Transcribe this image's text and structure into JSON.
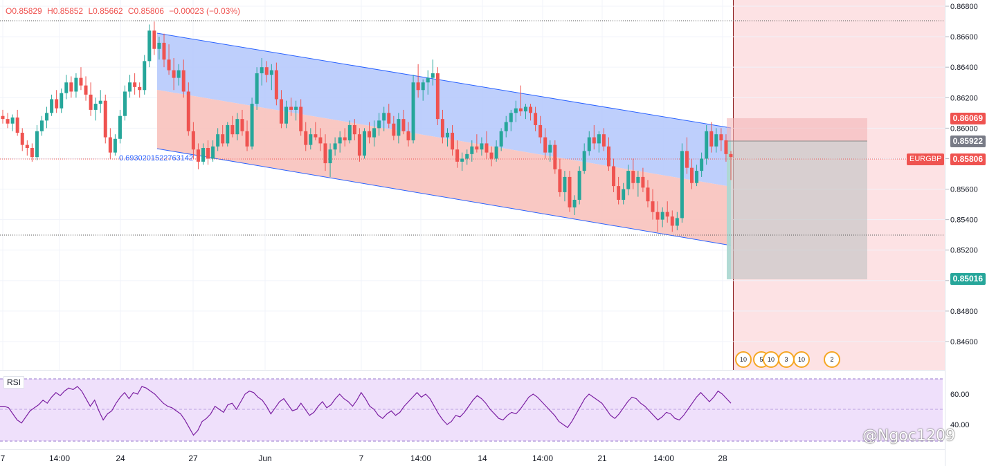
{
  "ohlc": {
    "open": "O0.85829",
    "high": "H0.85852",
    "low": "L0.85662",
    "close": "C0.85806",
    "change": "−0.00023 (−0.03%)"
  },
  "symbol": "EURGBP",
  "channel_label": "0.6930201522763142",
  "rsi_label": "RSI",
  "watermark": "@Ngoc1209",
  "price_tags": {
    "target_stop": "0.86069",
    "entry": "0.85922",
    "current": "0.85806",
    "target_profit": "0.85016"
  },
  "colors": {
    "up": "#26a69a",
    "down": "#ef5350",
    "channel_line": "#2962ff",
    "channel_upper_fill": "#b3c7fb",
    "channel_lower_fill": "#f8c2bd",
    "rsi": "#7b1fa2",
    "rsi_band": "#efe0fb",
    "future_zone": "#fde2e4"
  },
  "events": [
    "10",
    "5",
    "10",
    "3",
    "10",
    "2"
  ],
  "chart_data": {
    "type": "candlestick",
    "y_axis": {
      "ticks": [
        "0.86800",
        "0.86600",
        "0.86400",
        "0.86200",
        "0.86000",
        "0.85800",
        "0.85600",
        "0.85400",
        "0.85200",
        "0.85000",
        "0.84800",
        "0.84600"
      ],
      "ylim": [
        0.844,
        0.868
      ]
    },
    "x_axis": {
      "ticks": [
        "7",
        "14:00",
        "24",
        "27",
        "Jun",
        "7",
        "14:00",
        "14",
        "14:00",
        "21",
        "14:00",
        "28"
      ]
    },
    "rsi": {
      "ticks": [
        "60.00",
        "40.00"
      ],
      "values": [
        52,
        52,
        51,
        47,
        43,
        41,
        45,
        49,
        51,
        53,
        56,
        54,
        58,
        61,
        59,
        62,
        64,
        63,
        65,
        62,
        57,
        52,
        56,
        49,
        43,
        47,
        49,
        54,
        58,
        61,
        57,
        61,
        60,
        65,
        64,
        62,
        60,
        57,
        54,
        52,
        51,
        49,
        47,
        43,
        38,
        33,
        36,
        42,
        44,
        47,
        52,
        50,
        48,
        53,
        54,
        50,
        55,
        60,
        62,
        61,
        58,
        56,
        52,
        47,
        51,
        55,
        57,
        53,
        49,
        50,
        54,
        50,
        46,
        48,
        52,
        55,
        51,
        53,
        57,
        60,
        57,
        55,
        52,
        56,
        61,
        57,
        52,
        50,
        46,
        44,
        47,
        49,
        46,
        48,
        52,
        55,
        58,
        61,
        58,
        60,
        57,
        52,
        47,
        43,
        40,
        42,
        46,
        45,
        48,
        52,
        56,
        59,
        57,
        54,
        50,
        47,
        44,
        43,
        46,
        48,
        47,
        50,
        54,
        58,
        60,
        58,
        55,
        52,
        49,
        46,
        42,
        40,
        38,
        42,
        47,
        52,
        57,
        60,
        58,
        56,
        54,
        50,
        46,
        44,
        47,
        51,
        55,
        58,
        57,
        54,
        52,
        49,
        46,
        43,
        45,
        48,
        47,
        44,
        43,
        46,
        50,
        54,
        58,
        61,
        58,
        55,
        58,
        62,
        60,
        57,
        54
      ]
    },
    "candles": [
      [
        0.8608,
        0.8612,
        0.8603,
        0.8606
      ],
      [
        0.8606,
        0.861,
        0.86,
        0.8603
      ],
      [
        0.8603,
        0.8609,
        0.8598,
        0.8607
      ],
      [
        0.8607,
        0.8612,
        0.8595,
        0.8597
      ],
      [
        0.8597,
        0.86,
        0.8585,
        0.8589
      ],
      [
        0.8589,
        0.8592,
        0.8582,
        0.8587
      ],
      [
        0.8587,
        0.859,
        0.8578,
        0.8581
      ],
      [
        0.8581,
        0.8602,
        0.8579,
        0.8598
      ],
      [
        0.8598,
        0.8608,
        0.8595,
        0.8605
      ],
      [
        0.8605,
        0.8614,
        0.86,
        0.861
      ],
      [
        0.861,
        0.8622,
        0.8608,
        0.8619
      ],
      [
        0.8619,
        0.8625,
        0.861,
        0.8613
      ],
      [
        0.8613,
        0.8626,
        0.861,
        0.8623
      ],
      [
        0.8623,
        0.8635,
        0.8619,
        0.863
      ],
      [
        0.863,
        0.8634,
        0.862,
        0.8624
      ],
      [
        0.8624,
        0.8636,
        0.862,
        0.8633
      ],
      [
        0.8633,
        0.864,
        0.8625,
        0.8628
      ],
      [
        0.8628,
        0.8634,
        0.8618,
        0.8622
      ],
      [
        0.8622,
        0.863,
        0.8608,
        0.8612
      ],
      [
        0.8612,
        0.862,
        0.8605,
        0.8616
      ],
      [
        0.8616,
        0.8625,
        0.861,
        0.8618
      ],
      [
        0.8618,
        0.8622,
        0.859,
        0.8594
      ],
      [
        0.8594,
        0.86,
        0.858,
        0.8584
      ],
      [
        0.8584,
        0.8596,
        0.8582,
        0.8593
      ],
      [
        0.8593,
        0.8612,
        0.859,
        0.8608
      ],
      [
        0.8608,
        0.8628,
        0.8605,
        0.8624
      ],
      [
        0.8624,
        0.8635,
        0.862,
        0.863
      ],
      [
        0.863,
        0.8636,
        0.8622,
        0.8627
      ],
      [
        0.8627,
        0.863,
        0.862,
        0.8625
      ],
      [
        0.8625,
        0.8648,
        0.8622,
        0.8644
      ],
      [
        0.8644,
        0.8668,
        0.864,
        0.8664
      ],
      [
        0.8664,
        0.867,
        0.8648,
        0.8652
      ],
      [
        0.8652,
        0.866,
        0.8645,
        0.8656
      ],
      [
        0.8656,
        0.8662,
        0.864,
        0.8645
      ],
      [
        0.8645,
        0.8655,
        0.8635,
        0.8638
      ],
      [
        0.8638,
        0.8646,
        0.8625,
        0.8633
      ],
      [
        0.8633,
        0.8642,
        0.8628,
        0.8638
      ],
      [
        0.8638,
        0.8645,
        0.862,
        0.8624
      ],
      [
        0.8624,
        0.863,
        0.8595,
        0.8598
      ],
      [
        0.8598,
        0.8604,
        0.858,
        0.8586
      ],
      [
        0.8586,
        0.859,
        0.8573,
        0.8578
      ],
      [
        0.8578,
        0.859,
        0.8576,
        0.8587
      ],
      [
        0.8587,
        0.8592,
        0.8576,
        0.858
      ],
      [
        0.858,
        0.8592,
        0.8578,
        0.8588
      ],
      [
        0.8588,
        0.86,
        0.8585,
        0.8596
      ],
      [
        0.8596,
        0.8602,
        0.8588,
        0.859
      ],
      [
        0.859,
        0.8604,
        0.8588,
        0.8602
      ],
      [
        0.8602,
        0.8608,
        0.8594,
        0.8596
      ],
      [
        0.8596,
        0.861,
        0.8592,
        0.8606
      ],
      [
        0.8606,
        0.8612,
        0.8595,
        0.8598
      ],
      [
        0.8598,
        0.8605,
        0.8585,
        0.8588
      ],
      [
        0.8588,
        0.862,
        0.8586,
        0.8616
      ],
      [
        0.8616,
        0.864,
        0.8612,
        0.8636
      ],
      [
        0.8636,
        0.8646,
        0.8628,
        0.864
      ],
      [
        0.864,
        0.8644,
        0.863,
        0.8635
      ],
      [
        0.8635,
        0.8642,
        0.8625,
        0.8638
      ],
      [
        0.8638,
        0.8643,
        0.8615,
        0.8619
      ],
      [
        0.8619,
        0.8625,
        0.86,
        0.8603
      ],
      [
        0.8603,
        0.8618,
        0.86,
        0.8614
      ],
      [
        0.8614,
        0.862,
        0.8608,
        0.8612
      ],
      [
        0.8612,
        0.8618,
        0.8605,
        0.8614
      ],
      [
        0.8614,
        0.8619,
        0.8595,
        0.8598
      ],
      [
        0.8598,
        0.8604,
        0.8585,
        0.8589
      ],
      [
        0.8589,
        0.86,
        0.8586,
        0.8596
      ],
      [
        0.8596,
        0.8604,
        0.8592,
        0.8594
      ],
      [
        0.8594,
        0.86,
        0.8585,
        0.859
      ],
      [
        0.859,
        0.8596,
        0.8572,
        0.8577
      ],
      [
        0.8577,
        0.859,
        0.8568,
        0.8586
      ],
      [
        0.8586,
        0.8594,
        0.8582,
        0.859
      ],
      [
        0.859,
        0.8598,
        0.8584,
        0.8594
      ],
      [
        0.8594,
        0.86,
        0.8588,
        0.8592
      ],
      [
        0.8592,
        0.8605,
        0.859,
        0.8602
      ],
      [
        0.8602,
        0.8606,
        0.8592,
        0.8596
      ],
      [
        0.8596,
        0.86,
        0.8578,
        0.8582
      ],
      [
        0.8582,
        0.86,
        0.858,
        0.8598
      ],
      [
        0.8598,
        0.8604,
        0.859,
        0.8594
      ],
      [
        0.8594,
        0.8605,
        0.8588,
        0.86
      ],
      [
        0.86,
        0.861,
        0.8595,
        0.8605
      ],
      [
        0.8605,
        0.8614,
        0.8598,
        0.861
      ],
      [
        0.861,
        0.8616,
        0.86,
        0.8603
      ],
      [
        0.8603,
        0.8608,
        0.8592,
        0.8595
      ],
      [
        0.8595,
        0.861,
        0.859,
        0.8606
      ],
      [
        0.8606,
        0.8612,
        0.8596,
        0.8598
      ],
      [
        0.8598,
        0.8604,
        0.8588,
        0.8592
      ],
      [
        0.8592,
        0.8635,
        0.859,
        0.863
      ],
      [
        0.863,
        0.8642,
        0.862,
        0.8625
      ],
      [
        0.8625,
        0.8632,
        0.8618,
        0.863
      ],
      [
        0.863,
        0.8638,
        0.8622,
        0.8633
      ],
      [
        0.8633,
        0.8645,
        0.8628,
        0.8636
      ],
      [
        0.8636,
        0.864,
        0.8602,
        0.8606
      ],
      [
        0.8606,
        0.8612,
        0.859,
        0.8594
      ],
      [
        0.8594,
        0.86,
        0.8588,
        0.8597
      ],
      [
        0.8597,
        0.8602,
        0.8582,
        0.8586
      ],
      [
        0.8586,
        0.8592,
        0.8574,
        0.8578
      ],
      [
        0.8578,
        0.8584,
        0.8572,
        0.858
      ],
      [
        0.858,
        0.8586,
        0.8576,
        0.8583
      ],
      [
        0.8583,
        0.8592,
        0.8578,
        0.8588
      ],
      [
        0.8588,
        0.8596,
        0.8584,
        0.8586
      ],
      [
        0.8586,
        0.8594,
        0.8582,
        0.859
      ],
      [
        0.859,
        0.8598,
        0.858,
        0.8584
      ],
      [
        0.8584,
        0.8588,
        0.8575,
        0.858
      ],
      [
        0.858,
        0.8592,
        0.8578,
        0.8588
      ],
      [
        0.8588,
        0.86,
        0.8585,
        0.8598
      ],
      [
        0.8598,
        0.8608,
        0.8594,
        0.8604
      ],
      [
        0.8604,
        0.8612,
        0.8598,
        0.861
      ],
      [
        0.861,
        0.8618,
        0.8604,
        0.8613
      ],
      [
        0.8613,
        0.8628,
        0.8608,
        0.8611
      ],
      [
        0.8611,
        0.8616,
        0.8606,
        0.8614
      ],
      [
        0.8614,
        0.8616,
        0.8605,
        0.861
      ],
      [
        0.861,
        0.8614,
        0.8598,
        0.8602
      ],
      [
        0.8602,
        0.8608,
        0.859,
        0.8594
      ],
      [
        0.8594,
        0.86,
        0.858,
        0.8584
      ],
      [
        0.8584,
        0.8592,
        0.8578,
        0.8589
      ],
      [
        0.8589,
        0.8592,
        0.857,
        0.8573
      ],
      [
        0.8573,
        0.858,
        0.8555,
        0.8558
      ],
      [
        0.8558,
        0.8572,
        0.8552,
        0.8568
      ],
      [
        0.8568,
        0.8572,
        0.8545,
        0.8548
      ],
      [
        0.8548,
        0.8556,
        0.8543,
        0.8553
      ],
      [
        0.8553,
        0.8575,
        0.855,
        0.8572
      ],
      [
        0.8572,
        0.859,
        0.857,
        0.8585
      ],
      [
        0.8585,
        0.8598,
        0.8582,
        0.8594
      ],
      [
        0.8594,
        0.8602,
        0.8586,
        0.859
      ],
      [
        0.859,
        0.8598,
        0.8584,
        0.8596
      ],
      [
        0.8596,
        0.86,
        0.8585,
        0.8588
      ],
      [
        0.8588,
        0.8594,
        0.8572,
        0.8575
      ],
      [
        0.8575,
        0.858,
        0.8558,
        0.8562
      ],
      [
        0.8562,
        0.8568,
        0.855,
        0.8553
      ],
      [
        0.8553,
        0.8564,
        0.855,
        0.856
      ],
      [
        0.856,
        0.8576,
        0.8556,
        0.8572
      ],
      [
        0.8572,
        0.858,
        0.856,
        0.8564
      ],
      [
        0.8564,
        0.8572,
        0.8555,
        0.8568
      ],
      [
        0.8568,
        0.8574,
        0.8558,
        0.8561
      ],
      [
        0.8561,
        0.8566,
        0.8548,
        0.8552
      ],
      [
        0.8552,
        0.856,
        0.854,
        0.8545
      ],
      [
        0.8545,
        0.8552,
        0.8532,
        0.854
      ],
      [
        0.854,
        0.8548,
        0.8535,
        0.8545
      ],
      [
        0.8545,
        0.8552,
        0.8538,
        0.8542
      ],
      [
        0.8542,
        0.8546,
        0.8532,
        0.8536
      ],
      [
        0.8536,
        0.8545,
        0.8533,
        0.8541
      ],
      [
        0.8541,
        0.859,
        0.8538,
        0.8585
      ],
      [
        0.8585,
        0.8594,
        0.857,
        0.8574
      ],
      [
        0.8574,
        0.858,
        0.856,
        0.8564
      ],
      [
        0.8564,
        0.8576,
        0.8562,
        0.8572
      ],
      [
        0.8572,
        0.8584,
        0.8568,
        0.858
      ],
      [
        0.858,
        0.8602,
        0.8576,
        0.8598
      ],
      [
        0.8598,
        0.8604,
        0.8584,
        0.8588
      ],
      [
        0.8588,
        0.86,
        0.8584,
        0.8596
      ],
      [
        0.8596,
        0.86,
        0.8585,
        0.8592
      ],
      [
        0.8592,
        0.8596,
        0.8578,
        0.8583
      ],
      [
        0.8583,
        0.8585,
        0.8566,
        0.8581
      ]
    ]
  }
}
